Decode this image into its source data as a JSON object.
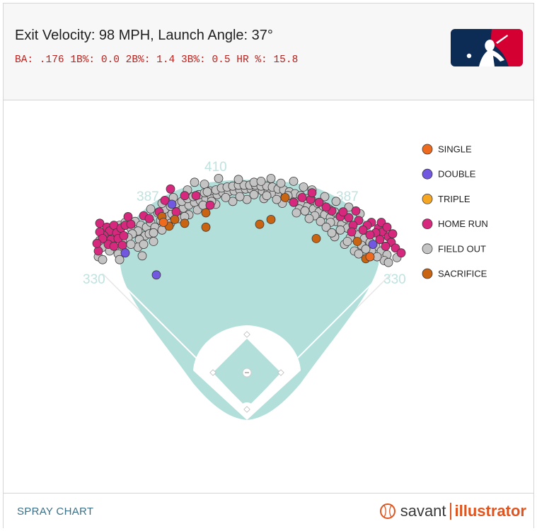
{
  "header": {
    "title": "Exit Velocity: 98 MPH, Launch Angle: 37°",
    "stats": "BA: .176 1B%: 0.0 2B%: 1.4 3B%: 0.5 HR %: 15.8",
    "logo_icon": "mlb-logo-icon"
  },
  "footer": {
    "label": "SPRAY CHART",
    "brand_left": "savant",
    "brand_right": "illustrator",
    "brand_icon": "baseball-icon"
  },
  "colors": {
    "field": "#b3dfdb",
    "single": "#ee6a1f",
    "double": "#7257e0",
    "triple": "#f5a623",
    "home_run": "#d6297e",
    "field_out": "#c4c4c4",
    "sacrifice": "#c86412",
    "distance_label": "#bfe3df",
    "stats_text": "#b8231f"
  },
  "chart_data": {
    "type": "scatter",
    "title": "Exit Velocity: 98 MPH, Launch Angle: 37°",
    "subtitle": "BA: .176 1B%: 0.0 2B%: 1.4 3B%: 0.5 HR %: 15.8",
    "distance_labels": {
      "left_line": "330",
      "left_center": "387",
      "center": "410",
      "right_center": "387",
      "right_line": "330"
    },
    "legend_position": "right",
    "legend": [
      {
        "key": "single",
        "label": "SINGLE",
        "color": "#ee6a1f"
      },
      {
        "key": "double",
        "label": "DOUBLE",
        "color": "#7257e0"
      },
      {
        "key": "triple",
        "label": "TRIPLE",
        "color": "#f5a623"
      },
      {
        "key": "home_run",
        "label": "HOME RUN",
        "color": "#d6297e"
      },
      {
        "key": "field_out",
        "label": "FIELD OUT",
        "color": "#c4c4c4"
      },
      {
        "key": "sacrifice",
        "label": "SACRIFICE",
        "color": "#c86412"
      }
    ],
    "series": [
      {
        "key": "double",
        "points": [
          [
            -0.86,
            0.18
          ],
          [
            0.89,
            0.27
          ],
          [
            -0.53,
            0.69
          ],
          [
            -0.64,
            -0.05
          ]
        ]
      },
      {
        "key": "sacrifice",
        "points": [
          [
            -0.51,
            0.53
          ],
          [
            -0.44,
            0.49
          ],
          [
            -0.55,
            0.46
          ],
          [
            -0.29,
            0.45
          ],
          [
            0.17,
            0.53
          ],
          [
            0.27,
            0.76
          ],
          [
            -0.6,
            0.56
          ],
          [
            0.78,
            0.3
          ],
          [
            0.84,
            0.12
          ],
          [
            -0.29,
            0.6
          ],
          [
            0.49,
            0.33
          ],
          [
            0.09,
            0.48
          ]
        ]
      },
      {
        "key": "single",
        "points": [
          [
            0.87,
            0.14
          ],
          [
            -0.59,
            0.5
          ]
        ]
      },
      {
        "key": "home_run",
        "points": [
          [
            -1.04,
            0.49
          ],
          [
            -0.99,
            0.45
          ],
          [
            -0.97,
            0.41
          ],
          [
            -0.94,
            0.47
          ],
          [
            -0.92,
            0.39
          ],
          [
            -1.01,
            0.36
          ],
          [
            -1.04,
            0.4
          ],
          [
            -0.96,
            0.32
          ],
          [
            -0.89,
            0.44
          ],
          [
            -0.86,
            0.47
          ],
          [
            -0.91,
            0.33
          ],
          [
            -0.98,
            0.27
          ],
          [
            -1.05,
            0.2
          ],
          [
            -1.02,
            0.33
          ],
          [
            -0.87,
            0.36
          ],
          [
            -0.88,
            0.26
          ],
          [
            -0.82,
            0.48
          ],
          [
            -0.84,
            0.56
          ],
          [
            -0.73,
            0.57
          ],
          [
            -0.69,
            0.54
          ],
          [
            -0.62,
            0.61
          ],
          [
            -0.58,
            0.73
          ],
          [
            -0.54,
            0.85
          ],
          [
            -0.36,
            0.78
          ],
          [
            -0.26,
            0.68
          ],
          [
            -0.44,
            0.78
          ],
          [
            -0.5,
            0.61
          ],
          [
            -0.94,
            0.25
          ],
          [
            -1.06,
            0.28
          ],
          [
            0.88,
            0.5
          ],
          [
            0.93,
            0.44
          ],
          [
            0.96,
            0.4
          ],
          [
            1.0,
            0.35
          ],
          [
            1.02,
            0.29
          ],
          [
            1.05,
            0.23
          ],
          [
            1.09,
            0.18
          ],
          [
            0.98,
            0.25
          ],
          [
            0.91,
            0.39
          ],
          [
            0.85,
            0.47
          ],
          [
            0.79,
            0.52
          ],
          [
            0.72,
            0.55
          ],
          [
            0.66,
            0.56
          ],
          [
            0.6,
            0.62
          ],
          [
            0.56,
            0.66
          ],
          [
            0.51,
            0.71
          ],
          [
            0.45,
            0.74
          ],
          [
            0.39,
            0.76
          ],
          [
            0.33,
            0.71
          ],
          [
            0.46,
            0.81
          ],
          [
            0.75,
            0.47
          ],
          [
            0.82,
            0.42
          ],
          [
            0.87,
            0.37
          ],
          [
            0.94,
            0.32
          ],
          [
            1.03,
            0.38
          ],
          [
            0.95,
            0.5
          ],
          [
            0.77,
            0.62
          ],
          [
            0.68,
            0.61
          ],
          [
            0.74,
            0.4
          ],
          [
            0.99,
            0.45
          ]
        ]
      },
      {
        "key": "field_out",
        "points": [
          [
            -0.95,
            0.43
          ],
          [
            -0.9,
            0.47
          ],
          [
            -0.86,
            0.5
          ],
          [
            -0.82,
            0.44
          ],
          [
            -0.79,
            0.51
          ],
          [
            -0.75,
            0.47
          ],
          [
            -0.77,
            0.41
          ],
          [
            -0.81,
            0.38
          ],
          [
            -0.84,
            0.34
          ],
          [
            -0.88,
            0.3
          ],
          [
            -0.93,
            0.28
          ],
          [
            -0.96,
            0.36
          ],
          [
            -0.99,
            0.3
          ],
          [
            -1.02,
            0.24
          ],
          [
            -1.04,
            0.31
          ],
          [
            -0.71,
            0.45
          ],
          [
            -0.68,
            0.5
          ],
          [
            -0.65,
            0.45
          ],
          [
            -0.61,
            0.52
          ],
          [
            -0.57,
            0.56
          ],
          [
            -0.53,
            0.59
          ],
          [
            -0.49,
            0.62
          ],
          [
            -0.45,
            0.65
          ],
          [
            -0.41,
            0.68
          ],
          [
            -0.37,
            0.71
          ],
          [
            -0.33,
            0.73
          ],
          [
            -0.29,
            0.75
          ],
          [
            -0.25,
            0.77
          ],
          [
            -0.21,
            0.79
          ],
          [
            -0.17,
            0.81
          ],
          [
            -0.13,
            0.82
          ],
          [
            -0.09,
            0.83
          ],
          [
            -0.05,
            0.84
          ],
          [
            -0.01,
            0.85
          ],
          [
            0.03,
            0.85
          ],
          [
            0.07,
            0.84
          ],
          [
            0.11,
            0.83
          ],
          [
            0.15,
            0.82
          ],
          [
            0.19,
            0.8
          ],
          [
            0.23,
            0.79
          ],
          [
            0.27,
            0.77
          ],
          [
            0.31,
            0.75
          ],
          [
            0.35,
            0.72
          ],
          [
            0.39,
            0.7
          ],
          [
            0.43,
            0.67
          ],
          [
            0.47,
            0.64
          ],
          [
            0.51,
            0.61
          ],
          [
            0.55,
            0.58
          ],
          [
            0.59,
            0.55
          ],
          [
            0.63,
            0.51
          ],
          [
            0.67,
            0.48
          ],
          [
            0.71,
            0.44
          ],
          [
            0.75,
            0.41
          ],
          [
            0.79,
            0.37
          ],
          [
            0.83,
            0.33
          ],
          [
            0.87,
            0.29
          ],
          [
            0.91,
            0.25
          ],
          [
            0.95,
            0.2
          ],
          [
            0.99,
            0.16
          ],
          [
            -0.63,
            0.6
          ],
          [
            -0.58,
            0.64
          ],
          [
            -0.54,
            0.67
          ],
          [
            -0.5,
            0.7
          ],
          [
            -0.46,
            0.72
          ],
          [
            -0.42,
            0.75
          ],
          [
            -0.38,
            0.77
          ],
          [
            -0.34,
            0.79
          ],
          [
            -0.3,
            0.81
          ],
          [
            -0.26,
            0.83
          ],
          [
            -0.22,
            0.84
          ],
          [
            -0.18,
            0.86
          ],
          [
            -0.14,
            0.87
          ],
          [
            -0.1,
            0.88
          ],
          [
            -0.06,
            0.89
          ],
          [
            -0.02,
            0.89
          ],
          [
            0.02,
            0.89
          ],
          [
            0.06,
            0.89
          ],
          [
            0.1,
            0.88
          ],
          [
            0.14,
            0.88
          ],
          [
            0.18,
            0.87
          ],
          [
            0.22,
            0.85
          ],
          [
            0.26,
            0.84
          ],
          [
            0.3,
            0.82
          ],
          [
            0.34,
            0.8
          ],
          [
            0.38,
            0.78
          ],
          [
            0.42,
            0.75
          ],
          [
            0.46,
            0.73
          ],
          [
            0.5,
            0.7
          ],
          [
            0.54,
            0.67
          ],
          [
            0.58,
            0.64
          ],
          [
            0.62,
            0.61
          ],
          [
            0.66,
            0.57
          ],
          [
            0.7,
            0.54
          ],
          [
            -0.37,
            0.92
          ],
          [
            -0.2,
            0.96
          ],
          [
            0.05,
            0.92
          ],
          [
            0.17,
            0.96
          ],
          [
            0.33,
            0.93
          ],
          [
            0.1,
            0.93
          ],
          [
            -0.06,
            0.95
          ],
          [
            0.24,
            0.91
          ],
          [
            0.4,
            0.87
          ],
          [
            -0.3,
            0.9
          ],
          [
            -0.35,
            0.63
          ],
          [
            -0.22,
            0.69
          ],
          [
            -0.1,
            0.72
          ],
          [
            0.0,
            0.74
          ],
          [
            0.12,
            0.75
          ],
          [
            0.25,
            0.7
          ],
          [
            0.37,
            0.64
          ],
          [
            0.48,
            0.57
          ],
          [
            -0.48,
            0.54
          ],
          [
            -0.6,
            0.42
          ],
          [
            -0.72,
            0.36
          ],
          [
            -0.41,
            0.58
          ],
          [
            0.59,
            0.5
          ],
          [
            0.66,
            0.42
          ],
          [
            0.73,
            0.34
          ],
          [
            0.81,
            0.26
          ],
          [
            0.88,
            0.2
          ],
          [
            0.97,
            0.1
          ],
          [
            0.92,
            0.14
          ],
          [
            0.69,
            0.27
          ],
          [
            0.76,
            0.2
          ],
          [
            0.62,
            0.35
          ],
          [
            -0.97,
            0.2
          ],
          [
            -1.05,
            0.14
          ],
          [
            -0.88,
            0.21
          ],
          [
            -0.76,
            0.32
          ],
          [
            -0.69,
            0.38
          ],
          [
            -0.91,
            0.17
          ],
          [
            -1.02,
            0.11
          ],
          [
            -0.74,
            0.15
          ],
          [
            -0.77,
            0.24
          ],
          [
            -0.82,
            0.27
          ],
          [
            -0.15,
            0.76
          ],
          [
            -0.05,
            0.77
          ],
          [
            0.05,
            0.79
          ],
          [
            0.14,
            0.78
          ],
          [
            0.29,
            0.78
          ],
          [
            0.21,
            0.74
          ],
          [
            -0.25,
            0.72
          ],
          [
            -0.31,
            0.68
          ],
          [
            0.41,
            0.62
          ],
          [
            0.52,
            0.51
          ],
          [
            0.44,
            0.54
          ],
          [
            0.56,
            0.45
          ],
          [
            -0.54,
            0.49
          ],
          [
            -0.66,
            0.39
          ],
          [
            -0.44,
            0.56
          ],
          [
            0.35,
            0.6
          ],
          [
            1.0,
            0.08
          ],
          [
            1.06,
            0.13
          ],
          [
            -0.9,
            0.11
          ],
          [
            -0.73,
            0.27
          ],
          [
            -0.66,
            0.3
          ],
          [
            0.79,
            0.17
          ],
          [
            0.84,
            0.22
          ],
          [
            0.71,
            0.3
          ],
          [
            0.6,
            0.39
          ],
          [
            -0.28,
            0.82
          ],
          [
            -0.42,
            0.84
          ],
          [
            0.46,
            0.84
          ],
          [
            0.55,
            0.77
          ],
          [
            0.63,
            0.72
          ],
          [
            -0.52,
            0.76
          ],
          [
            -0.6,
            0.7
          ],
          [
            -0.68,
            0.64
          ],
          [
            0.72,
            0.66
          ],
          [
            0.8,
            0.59
          ]
        ]
      }
    ]
  }
}
